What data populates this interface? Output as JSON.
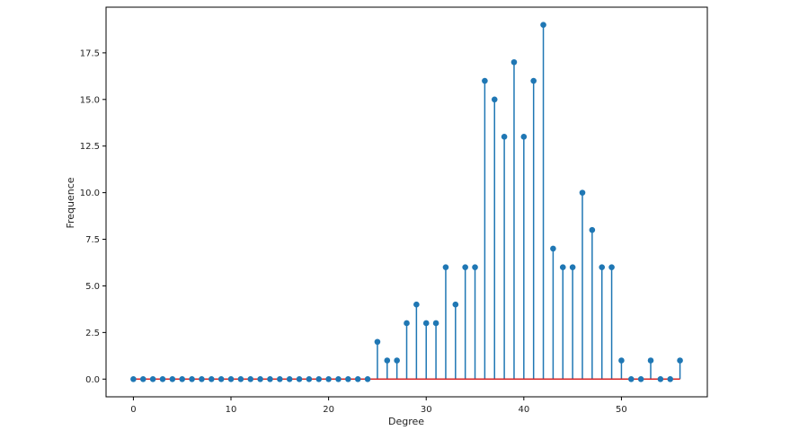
{
  "chart_data": {
    "type": "stem",
    "title": "",
    "xlabel": "Degree",
    "ylabel": "Frequence",
    "xlim": [
      -2.8,
      58.8
    ],
    "ylim": [
      -0.95,
      19.95
    ],
    "xticks": [
      0,
      10,
      20,
      30,
      40,
      50
    ],
    "yticks": [
      0.0,
      2.5,
      5.0,
      7.5,
      10.0,
      12.5,
      15.0,
      17.5
    ],
    "grid": false,
    "colors": {
      "stem": "#1f77b4",
      "baseline": "#d62728"
    },
    "x": [
      0,
      1,
      2,
      3,
      4,
      5,
      6,
      7,
      8,
      9,
      10,
      11,
      12,
      13,
      14,
      15,
      16,
      17,
      18,
      19,
      20,
      21,
      22,
      23,
      24,
      25,
      26,
      27,
      28,
      29,
      30,
      31,
      32,
      33,
      34,
      35,
      36,
      37,
      38,
      39,
      40,
      41,
      42,
      43,
      44,
      45,
      46,
      47,
      48,
      49,
      50,
      51,
      52,
      53,
      54,
      55,
      56
    ],
    "values": [
      0,
      0,
      0,
      0,
      0,
      0,
      0,
      0,
      0,
      0,
      0,
      0,
      0,
      0,
      0,
      0,
      0,
      0,
      0,
      0,
      0,
      0,
      0,
      0,
      0,
      2,
      1,
      1,
      3,
      4,
      3,
      3,
      6,
      4,
      6,
      6,
      16,
      15,
      13,
      17,
      13,
      16,
      19,
      7,
      6,
      6,
      10,
      8,
      6,
      6,
      1,
      0,
      0,
      1,
      0,
      0,
      1
    ]
  }
}
